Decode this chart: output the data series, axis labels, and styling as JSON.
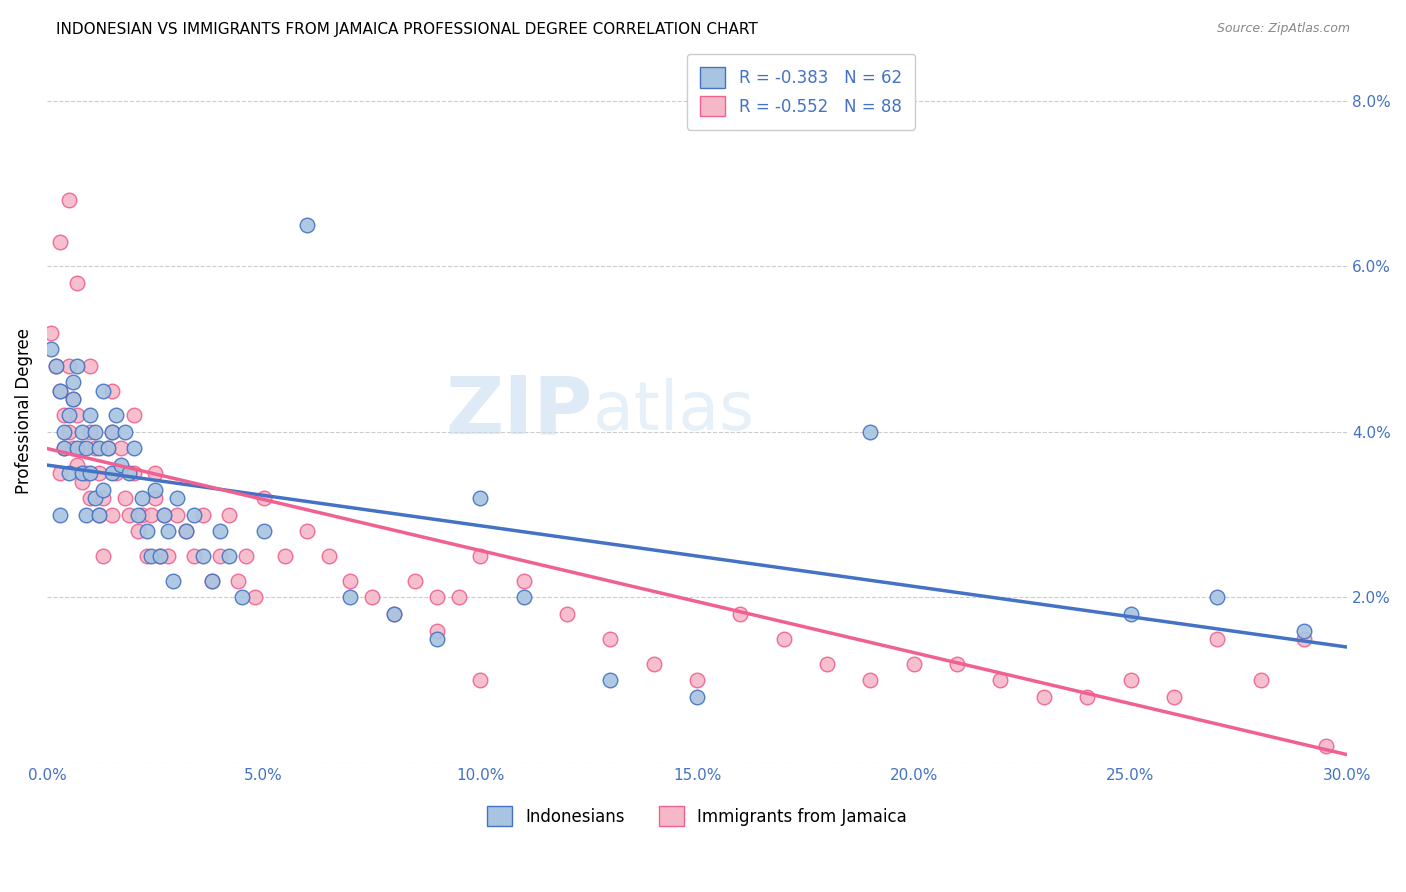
{
  "title": "INDONESIAN VS IMMIGRANTS FROM JAMAICA PROFESSIONAL DEGREE CORRELATION CHART",
  "source": "Source: ZipAtlas.com",
  "ylabel": "Professional Degree",
  "x_min": 0.0,
  "x_max": 0.3,
  "y_min": 0.0,
  "y_max": 0.085,
  "x_ticks": [
    0.0,
    0.05,
    0.1,
    0.15,
    0.2,
    0.25,
    0.3
  ],
  "y_ticks": [
    0.0,
    0.02,
    0.04,
    0.06,
    0.08
  ],
  "x_tick_labels": [
    "0.0%",
    "5.0%",
    "10.0%",
    "15.0%",
    "20.0%",
    "25.0%",
    "30.0%"
  ],
  "y_tick_labels": [
    "",
    "2.0%",
    "4.0%",
    "6.0%",
    "8.0%"
  ],
  "indonesian_R": -0.383,
  "indonesian_N": 62,
  "jamaican_R": -0.552,
  "jamaican_N": 88,
  "color_indonesian": "#a8c4e0",
  "color_jamaican": "#f4b8c8",
  "color_indonesian_line": "#4472c4",
  "color_jamaican_line": "#f06090",
  "indonesian_label": "Indonesians",
  "jamaican_label": "Immigrants from Jamaica",
  "watermark_zip": "ZIP",
  "watermark_atlas": "atlas",
  "indonesian_scatter_x": [
    0.001,
    0.002,
    0.003,
    0.003,
    0.004,
    0.004,
    0.005,
    0.005,
    0.006,
    0.006,
    0.007,
    0.007,
    0.008,
    0.008,
    0.009,
    0.009,
    0.01,
    0.01,
    0.011,
    0.011,
    0.012,
    0.012,
    0.013,
    0.013,
    0.014,
    0.015,
    0.015,
    0.016,
    0.017,
    0.018,
    0.019,
    0.02,
    0.021,
    0.022,
    0.023,
    0.024,
    0.025,
    0.026,
    0.027,
    0.028,
    0.029,
    0.03,
    0.032,
    0.034,
    0.036,
    0.038,
    0.04,
    0.042,
    0.045,
    0.05,
    0.06,
    0.07,
    0.08,
    0.09,
    0.1,
    0.11,
    0.13,
    0.15,
    0.19,
    0.25,
    0.27,
    0.29
  ],
  "indonesian_scatter_y": [
    0.05,
    0.048,
    0.045,
    0.03,
    0.04,
    0.038,
    0.042,
    0.035,
    0.046,
    0.044,
    0.048,
    0.038,
    0.04,
    0.035,
    0.038,
    0.03,
    0.042,
    0.035,
    0.04,
    0.032,
    0.038,
    0.03,
    0.033,
    0.045,
    0.038,
    0.04,
    0.035,
    0.042,
    0.036,
    0.04,
    0.035,
    0.038,
    0.03,
    0.032,
    0.028,
    0.025,
    0.033,
    0.025,
    0.03,
    0.028,
    0.022,
    0.032,
    0.028,
    0.03,
    0.025,
    0.022,
    0.028,
    0.025,
    0.02,
    0.028,
    0.065,
    0.02,
    0.018,
    0.015,
    0.032,
    0.02,
    0.01,
    0.008,
    0.04,
    0.018,
    0.02,
    0.016
  ],
  "jamaican_scatter_x": [
    0.001,
    0.002,
    0.003,
    0.003,
    0.004,
    0.004,
    0.005,
    0.005,
    0.006,
    0.006,
    0.007,
    0.007,
    0.008,
    0.008,
    0.009,
    0.01,
    0.01,
    0.011,
    0.012,
    0.012,
    0.013,
    0.013,
    0.014,
    0.015,
    0.015,
    0.016,
    0.017,
    0.018,
    0.019,
    0.02,
    0.021,
    0.022,
    0.023,
    0.024,
    0.025,
    0.026,
    0.027,
    0.028,
    0.03,
    0.032,
    0.034,
    0.036,
    0.038,
    0.04,
    0.042,
    0.044,
    0.046,
    0.048,
    0.05,
    0.055,
    0.06,
    0.065,
    0.07,
    0.075,
    0.08,
    0.085,
    0.09,
    0.095,
    0.1,
    0.11,
    0.12,
    0.13,
    0.14,
    0.15,
    0.16,
    0.17,
    0.18,
    0.19,
    0.2,
    0.21,
    0.22,
    0.23,
    0.24,
    0.25,
    0.26,
    0.27,
    0.28,
    0.29,
    0.295,
    0.003,
    0.005,
    0.007,
    0.01,
    0.015,
    0.02,
    0.025,
    0.09,
    0.1
  ],
  "jamaican_scatter_y": [
    0.052,
    0.048,
    0.045,
    0.035,
    0.042,
    0.038,
    0.048,
    0.04,
    0.044,
    0.038,
    0.042,
    0.036,
    0.038,
    0.034,
    0.035,
    0.04,
    0.032,
    0.038,
    0.035,
    0.03,
    0.032,
    0.025,
    0.038,
    0.04,
    0.03,
    0.035,
    0.038,
    0.032,
    0.03,
    0.035,
    0.028,
    0.03,
    0.025,
    0.03,
    0.032,
    0.025,
    0.03,
    0.025,
    0.03,
    0.028,
    0.025,
    0.03,
    0.022,
    0.025,
    0.03,
    0.022,
    0.025,
    0.02,
    0.032,
    0.025,
    0.028,
    0.025,
    0.022,
    0.02,
    0.018,
    0.022,
    0.016,
    0.02,
    0.025,
    0.022,
    0.018,
    0.015,
    0.012,
    0.01,
    0.018,
    0.015,
    0.012,
    0.01,
    0.012,
    0.012,
    0.01,
    0.008,
    0.008,
    0.01,
    0.008,
    0.015,
    0.01,
    0.015,
    0.002,
    0.063,
    0.068,
    0.058,
    0.048,
    0.045,
    0.042,
    0.035,
    0.02,
    0.01
  ],
  "line_indo_x0": 0.0,
  "line_indo_x1": 0.3,
  "line_indo_y0": 0.036,
  "line_indo_y1": 0.014,
  "line_jam_x0": 0.0,
  "line_jam_x1": 0.3,
  "line_jam_y0": 0.038,
  "line_jam_y1": 0.001
}
